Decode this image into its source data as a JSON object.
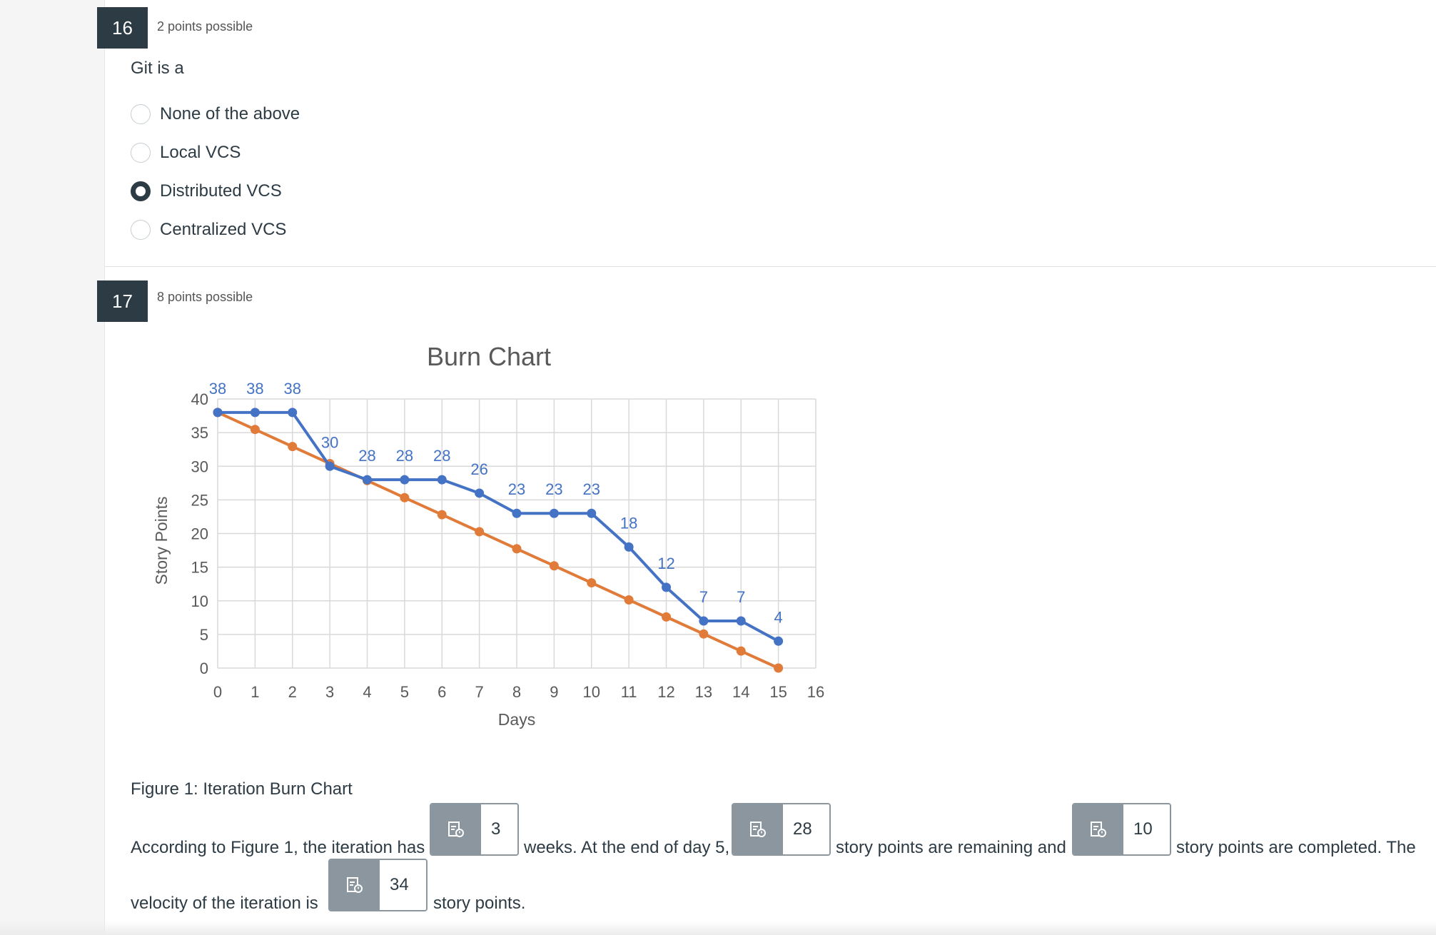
{
  "q16": {
    "number": "16",
    "points": "2 points possible",
    "question": "Git is a",
    "options": [
      {
        "label": "None of the above",
        "selected": false
      },
      {
        "label": "Local VCS",
        "selected": false
      },
      {
        "label": "Distributed VCS",
        "selected": true
      },
      {
        "label": "Centralized VCS",
        "selected": false
      }
    ]
  },
  "q17": {
    "number": "17",
    "points": "8 points possible",
    "caption": "Figure 1: Iteration Burn Chart",
    "sentence_parts": [
      "According to Figure 1, the iteration has",
      "weeks. At the end of day 5,",
      "story points are remaining and",
      "story points are completed. The",
      "velocity of the iteration is",
      "story points."
    ],
    "answers": [
      "3",
      "28",
      "10",
      "34"
    ],
    "answer_icon": "document-edit-icon"
  },
  "chart_data": {
    "type": "line",
    "title": "Burn Chart",
    "xlabel": "Days",
    "ylabel": "Story Points",
    "xlim": [
      0,
      16
    ],
    "ylim": [
      0,
      40
    ],
    "xticks": [
      "0",
      "1",
      "2",
      "3",
      "4",
      "5",
      "6",
      "7",
      "8",
      "9",
      "10",
      "11",
      "12",
      "13",
      "14",
      "15",
      "16"
    ],
    "yticks": [
      "0",
      "5",
      "10",
      "15",
      "20",
      "25",
      "30",
      "35",
      "40"
    ],
    "grid": true,
    "series": [
      {
        "color": "#e07b39",
        "x": [
          0,
          1,
          2,
          3,
          4,
          5,
          6,
          7,
          8,
          9,
          10,
          11,
          12,
          13,
          14,
          15
        ],
        "values": [
          38,
          35.47,
          32.93,
          30.4,
          27.87,
          25.33,
          22.8,
          20.27,
          17.73,
          15.2,
          12.67,
          10.13,
          7.6,
          5.07,
          2.53,
          0
        ],
        "labels": false
      },
      {
        "color": "#4472c4",
        "x": [
          0,
          1,
          2,
          3,
          4,
          5,
          6,
          7,
          8,
          9,
          10,
          11,
          12,
          13,
          14,
          15
        ],
        "values": [
          38,
          38,
          38,
          30,
          28,
          28,
          28,
          26,
          23,
          23,
          23,
          18,
          12,
          7,
          7,
          4
        ],
        "labels": true
      }
    ]
  }
}
